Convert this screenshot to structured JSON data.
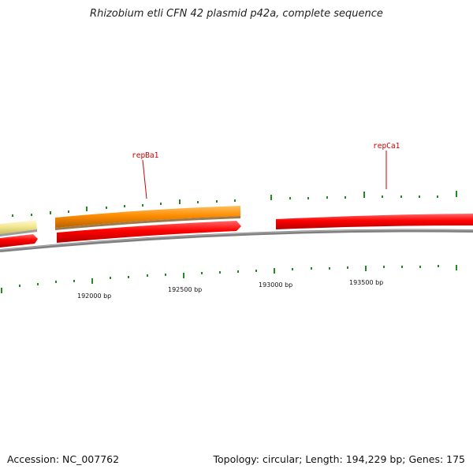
{
  "title": "Rhizobium etli CFN 42 plasmid p42a, complete sequence",
  "footer": {
    "accession": "Accession: NC_007762",
    "topology": "Topology: circular; Length: 194,229 bp; Genes: 175"
  },
  "genes": [
    {
      "name": "repBa1",
      "strand": "forward",
      "color": "#ff8c00"
    },
    {
      "name": "repCa1",
      "strand": "forward",
      "color": "#ff0000"
    }
  ],
  "scale_labels": [
    "192000 bp",
    "192500 bp",
    "193000 bp",
    "193500 bp"
  ],
  "colors": {
    "backbone": "#808080",
    "cds_red": "#ff0000",
    "cds_orange": "#ff8c00",
    "cds_pale": "#f0e68c",
    "ticks": "#228b22",
    "label": "#cc0000"
  }
}
